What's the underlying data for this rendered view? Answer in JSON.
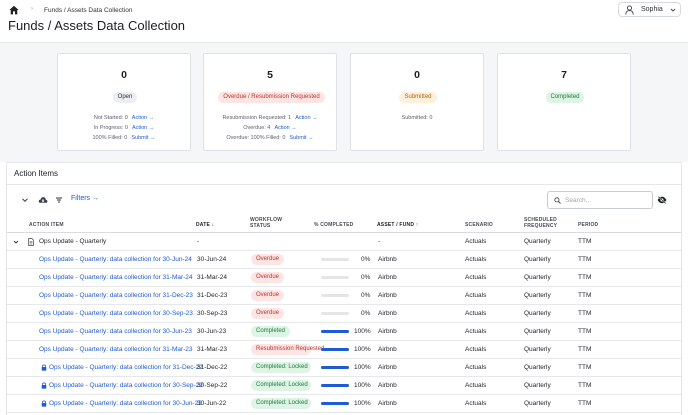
{
  "header": {
    "breadcrumb": "Funds / Assets Data Collection",
    "title": "Funds / Assets Data Collection",
    "user_name": "Sophia"
  },
  "summary": {
    "open": {
      "count": "0",
      "label": "Open",
      "lines": [
        {
          "text": "Not Started: 0",
          "action": "Action →"
        },
        {
          "text": "In Progress: 0",
          "action": "Action →"
        },
        {
          "text": "100% Filled: 0",
          "action": "Submit →"
        }
      ]
    },
    "overdue": {
      "count": "5",
      "label": "Overdue / Resubmission Requested",
      "lines": [
        {
          "text": "Resubmission Requested: 1",
          "action": "Action →"
        },
        {
          "text": "Overdue: 4",
          "action": "Action →"
        },
        {
          "text": "Overdue: 100% Filled: 0",
          "action": "Submit →"
        }
      ]
    },
    "submitted": {
      "count": "0",
      "label": "Submitted",
      "lines": [
        {
          "text": "Submitted: 0",
          "action": ""
        }
      ]
    },
    "completed": {
      "count": "7",
      "label": "Completed",
      "lines": []
    }
  },
  "action_items": {
    "title": "Action Items",
    "filters_label": "Filters →",
    "search_placeholder": "Search...",
    "columns": {
      "action_item": "ACTION ITEM",
      "date": "DATE ↓",
      "workflow_status": "WORKFLOW",
      "workflow_status_2": "STATUS",
      "completed": "% COMPLETED",
      "asset_fund": "ASSET / FUND ↑",
      "scenario": "SCENARIO",
      "frequency": "SCHEDULED",
      "frequency_2": "FREQUENCY",
      "period": "PERIOD"
    },
    "group": {
      "name": "Ops Update - Quarterly",
      "date": "-",
      "asset": "-",
      "scenario": "Actuals",
      "frequency": "Quarterly",
      "period": "TTM"
    },
    "rows": [
      {
        "item": "Ops Update - Quarterly: data collection for 30-Jun-24",
        "date": "30-Jun-24",
        "status": "Overdue",
        "status_type": "overdue",
        "pct_label": "0%",
        "pct": 0,
        "asset": "Airbnb",
        "scenario": "Actuals",
        "frequency": "Quarterly",
        "period": "TTM",
        "locked": false
      },
      {
        "item": "Ops Update - Quarterly: data collection for 31-Mar-24",
        "date": "31-Mar-24",
        "status": "Overdue",
        "status_type": "overdue",
        "pct_label": "0%",
        "pct": 0,
        "asset": "Airbnb",
        "scenario": "Actuals",
        "frequency": "Quarterly",
        "period": "TTM",
        "locked": false
      },
      {
        "item": "Ops Update - Quarterly: data collection for 31-Dec-23",
        "date": "31-Dec-23",
        "status": "Overdue",
        "status_type": "overdue",
        "pct_label": "0%",
        "pct": 0,
        "asset": "Airbnb",
        "scenario": "Actuals",
        "frequency": "Quarterly",
        "period": "TTM",
        "locked": false
      },
      {
        "item": "Ops Update - Quarterly: data collection for 30-Sep-23",
        "date": "30-Sep-23",
        "status": "Overdue",
        "status_type": "overdue",
        "pct_label": "0%",
        "pct": 0,
        "asset": "Airbnb",
        "scenario": "Actuals",
        "frequency": "Quarterly",
        "period": "TTM",
        "locked": false
      },
      {
        "item": "Ops Update - Quarterly: data collection for 30-Jun-23",
        "date": "30-Jun-23",
        "status": "Completed",
        "status_type": "completed",
        "pct_label": "100%",
        "pct": 100,
        "asset": "Airbnb",
        "scenario": "Actuals",
        "frequency": "Quarterly",
        "period": "TTM",
        "locked": false
      },
      {
        "item": "Ops Update - Quarterly: data collection for 31-Mar-23",
        "date": "31-Mar-23",
        "status": "Resubmission Requested",
        "status_type": "resubmission",
        "pct_label": "100%",
        "pct": 100,
        "asset": "Airbnb",
        "scenario": "Actuals",
        "frequency": "Quarterly",
        "period": "TTM",
        "locked": false
      },
      {
        "item": "Ops Update - Quarterly: data collection for 31-Dec-22",
        "date": "31-Dec-22",
        "status": "Completed: Locked",
        "status_type": "completed",
        "pct_label": "100%",
        "pct": 100,
        "asset": "Airbnb",
        "scenario": "Actuals",
        "frequency": "Quarterly",
        "period": "TTM",
        "locked": true
      },
      {
        "item": "Ops Update - Quarterly: data collection for 30-Sep-22",
        "date": "30-Sep-22",
        "status": "Completed: Locked",
        "status_type": "completed",
        "pct_label": "100%",
        "pct": 100,
        "asset": "Airbnb",
        "scenario": "Actuals",
        "frequency": "Quarterly",
        "period": "TTM",
        "locked": true
      },
      {
        "item": "Ops Update - Quarterly: data collection for 30-Jun-22",
        "date": "30-Jun-22",
        "status": "Completed: Locked",
        "status_type": "completed",
        "pct_label": "100%",
        "pct": 100,
        "asset": "Airbnb",
        "scenario": "Actuals",
        "frequency": "Quarterly",
        "period": "TTM",
        "locked": true
      }
    ]
  },
  "colors": {
    "accent": "#1f5bd7",
    "open_bg": "#eceef1",
    "overdue_bg": "#fde5e4",
    "overdue_text": "#c4312b",
    "submitted_bg": "#fdf1dd",
    "submitted_text": "#b5650b",
    "completed_bg": "#def4e4",
    "completed_text": "#1d7a3d"
  },
  "icons": [
    "home-icon",
    "user-icon",
    "chevron-down-icon",
    "download-icon",
    "filter-icon",
    "search-icon",
    "eye-off-icon",
    "document-icon",
    "lock-icon"
  ]
}
